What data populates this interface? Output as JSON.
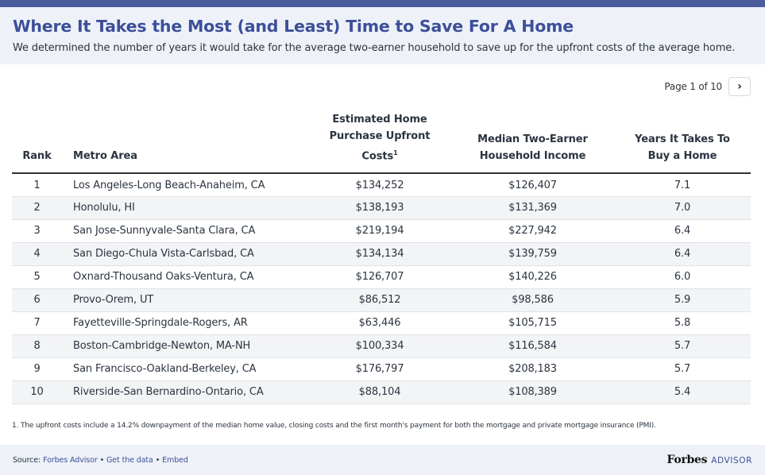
{
  "header": {
    "title": "Where It Takes the Most (and Least) Time to Save For A Home",
    "subtitle": "We determined the number of years it would take for the average two-earner household to save up for the upfront costs of the average home."
  },
  "pagination": {
    "label": "Page 1 of 10",
    "next_icon": "chevron-right-icon"
  },
  "table": {
    "headers": {
      "rank": "Rank",
      "metro": "Metro Area",
      "cost_line1": "Estimated Home",
      "cost_line2": "Purchase Upfront",
      "cost_line3": "Costs",
      "cost_sup": "1",
      "income_line1": "Median Two-Earner",
      "income_line2": "Household Income",
      "years_line1": "Years It Takes To",
      "years_line2": "Buy a Home"
    },
    "rows": [
      {
        "rank": "1",
        "metro": "Los Angeles-Long Beach-Anaheim, CA",
        "cost": "$134,252",
        "income": "$126,407",
        "years": "7.1"
      },
      {
        "rank": "2",
        "metro": "Honolulu, HI",
        "cost": "$138,193",
        "income": "$131,369",
        "years": "7.0"
      },
      {
        "rank": "3",
        "metro": "San Jose-Sunnyvale-Santa Clara, CA",
        "cost": "$219,194",
        "income": "$227,942",
        "years": "6.4"
      },
      {
        "rank": "4",
        "metro": "San Diego-Chula Vista-Carlsbad, CA",
        "cost": "$134,134",
        "income": "$139,759",
        "years": "6.4"
      },
      {
        "rank": "5",
        "metro": "Oxnard-Thousand Oaks-Ventura, CA",
        "cost": "$126,707",
        "income": "$140,226",
        "years": "6.0"
      },
      {
        "rank": "6",
        "metro": "Provo-Orem, UT",
        "cost": "$86,512",
        "income": "$98,586",
        "years": "5.9"
      },
      {
        "rank": "7",
        "metro": "Fayetteville-Springdale-Rogers, AR",
        "cost": "$63,446",
        "income": "$105,715",
        "years": "5.8"
      },
      {
        "rank": "8",
        "metro": "Boston-Cambridge-Newton, MA-NH",
        "cost": "$100,334",
        "income": "$116,584",
        "years": "5.7"
      },
      {
        "rank": "9",
        "metro": "San Francisco-Oakland-Berkeley, CA",
        "cost": "$176,797",
        "income": "$208,183",
        "years": "5.7"
      },
      {
        "rank": "10",
        "metro": "Riverside-San Bernardino-Ontario, CA",
        "cost": "$88,104",
        "income": "$108,389",
        "years": "5.4"
      }
    ]
  },
  "footnote": "1. The upfront costs include a 14.2% downpayment of the median home value, closing costs and the first month's payment for both the mortgage and private mortgage insurance (PMI).",
  "footer": {
    "source_prefix": "Source:",
    "source_link": "Forbes Advisor",
    "separator": "•",
    "get_data_link": "Get the data",
    "embed_link": "Embed",
    "brand_name": "Forbes",
    "brand_suffix": "ADVISOR"
  },
  "colors": {
    "accent": "#4a5b9e",
    "title": "#3d4f99",
    "header_bg": "#eef2f8",
    "row_alt": "#f3f4f6"
  }
}
